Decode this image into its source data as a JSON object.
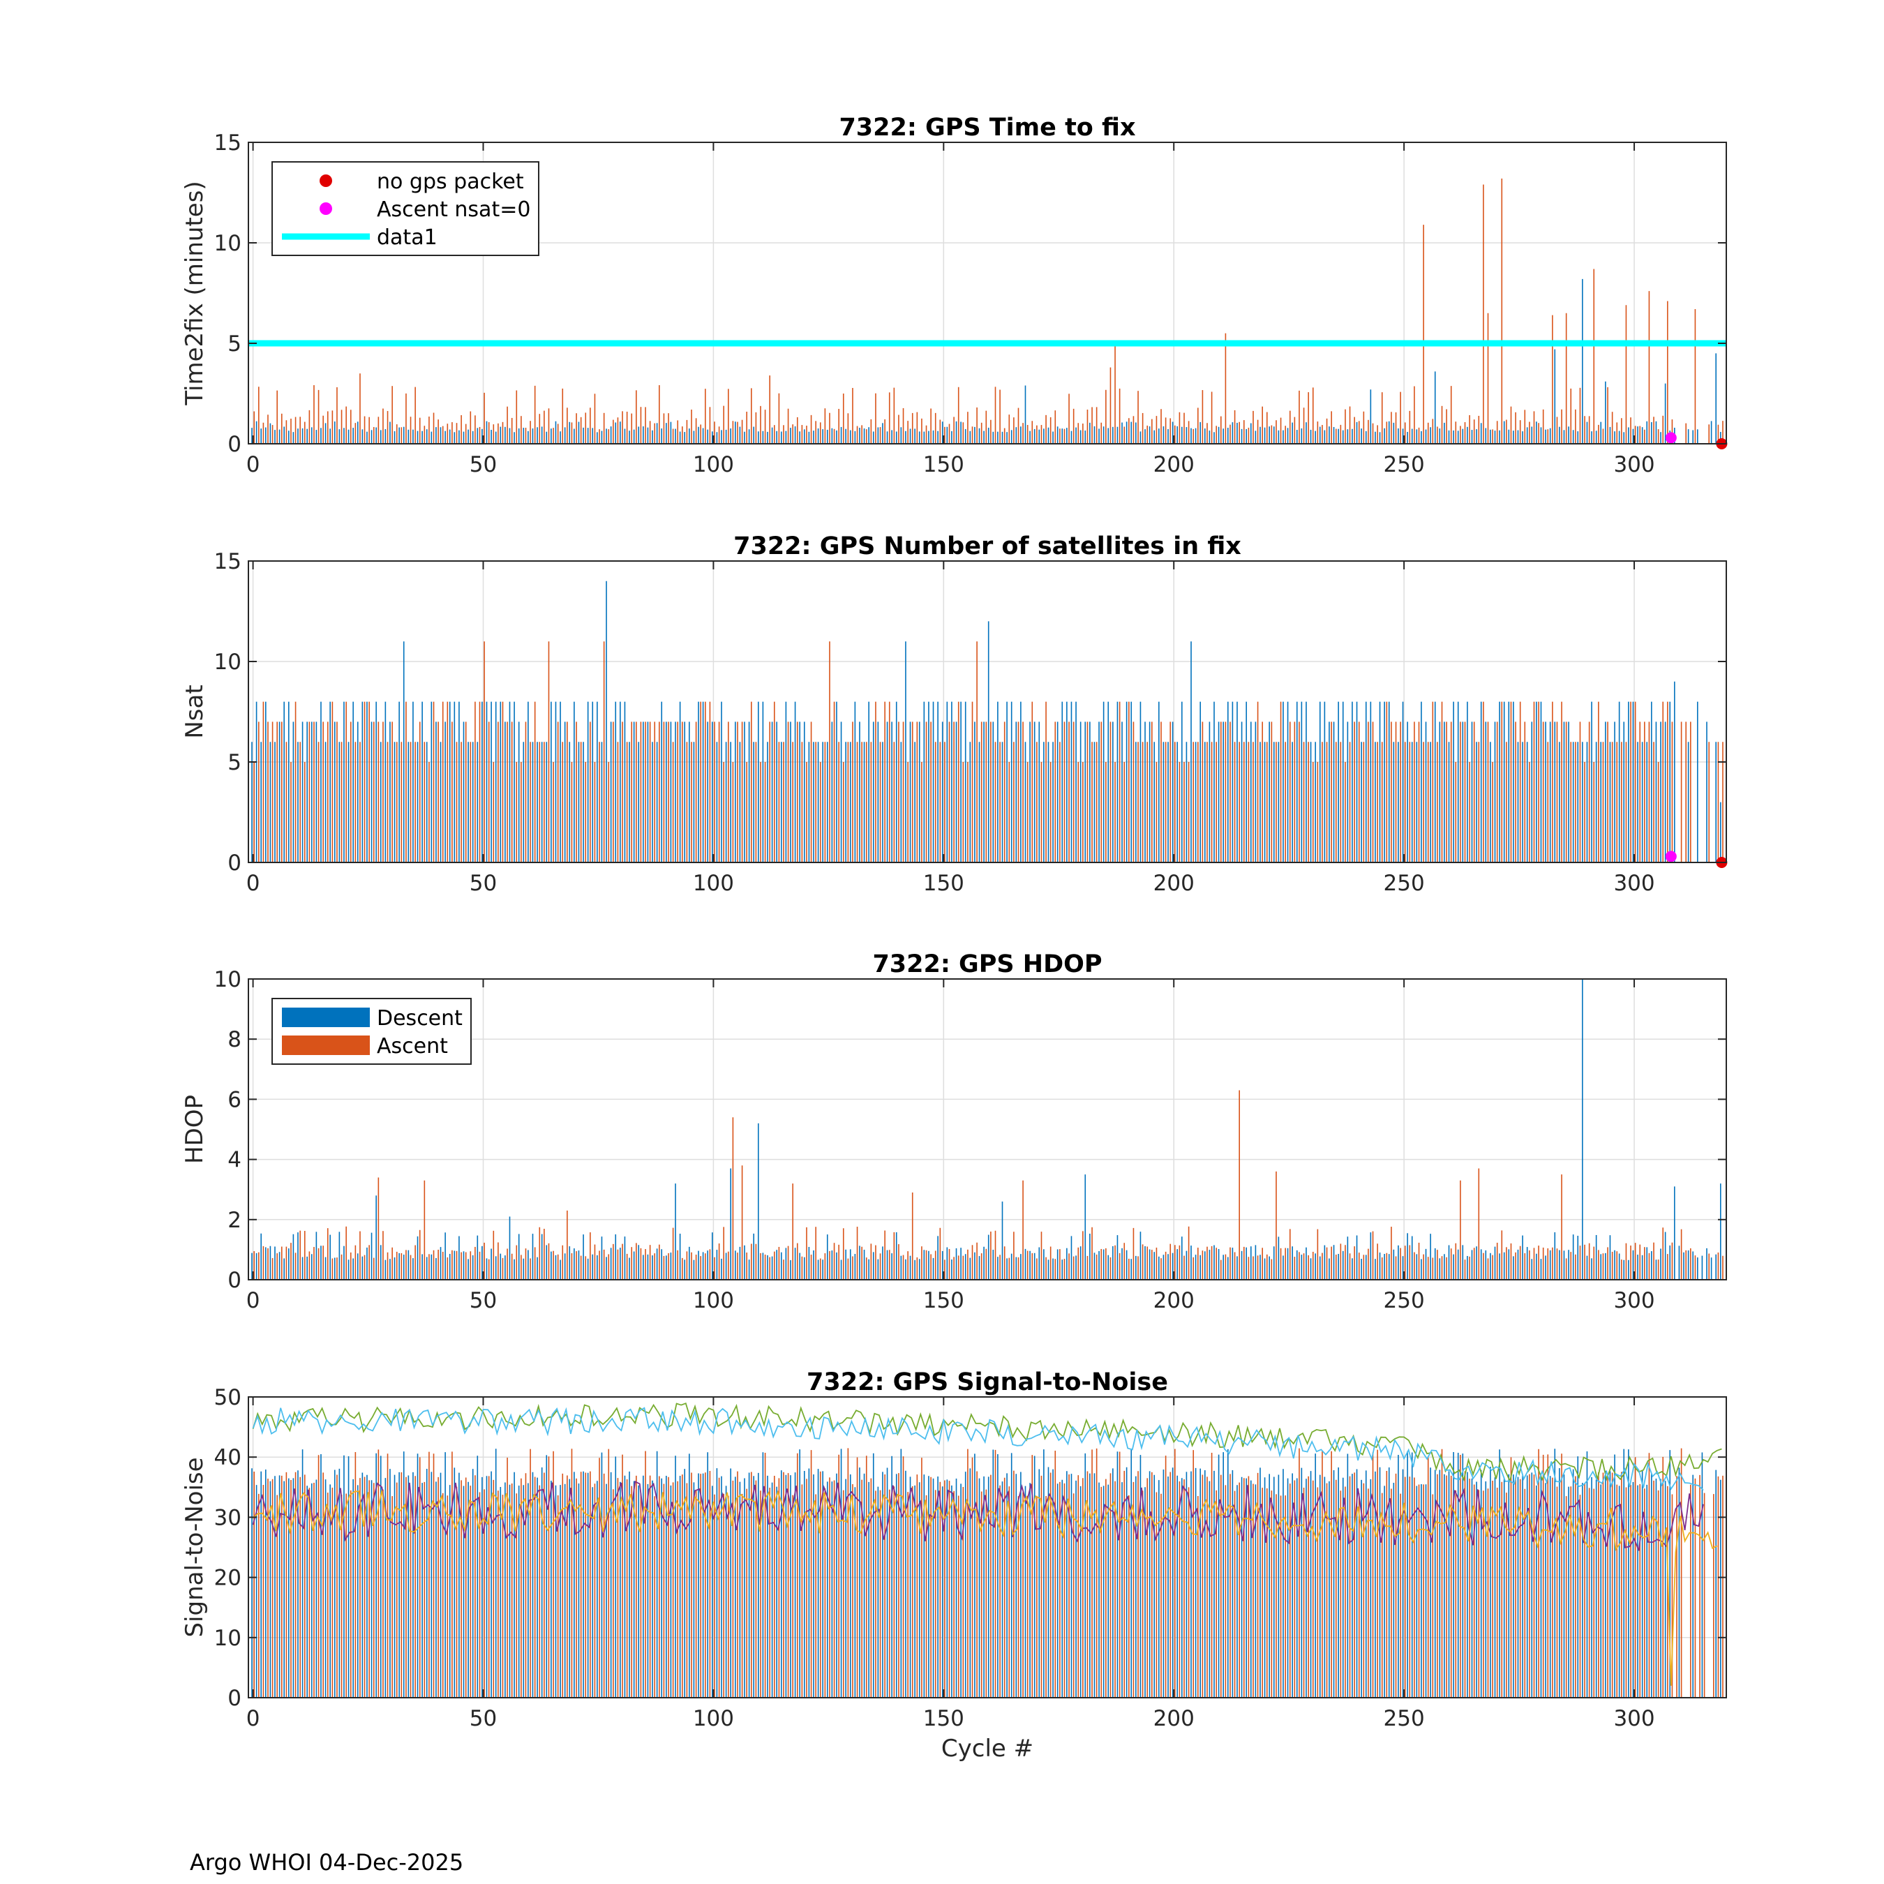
{
  "footer": "Argo WHOI 04-Dec-2025",
  "colors": {
    "descent": "#0072BD",
    "ascent": "#D95319",
    "cyan": "#00FFFF",
    "red": "#E00000",
    "magenta": "#FF00FF",
    "snr": [
      "#0072BD",
      "#D95319",
      "#EDB120",
      "#7E2F8E",
      "#77AC30",
      "#4DBEEE"
    ]
  },
  "chart_data": [
    {
      "type": "bar",
      "title": "7322: GPS Time to fix",
      "xlabel": "",
      "ylabel": "Time2fix (minutes)",
      "xlim": [
        -1,
        320
      ],
      "ylim": [
        0,
        15
      ],
      "xticks": [
        0,
        50,
        100,
        150,
        200,
        250,
        300
      ],
      "yticks": [
        0,
        5,
        10,
        15
      ],
      "grid": true,
      "legend_position": "top-left",
      "legend": [
        {
          "label": "no gps packet",
          "kind": "marker",
          "color": "#E00000"
        },
        {
          "label": "Ascent nsat=0",
          "kind": "marker",
          "color": "#FF00FF"
        },
        {
          "label": "data1",
          "kind": "line",
          "color": "#00FFFF"
        }
      ],
      "series": [
        {
          "name": "Descent",
          "color": "#0072BD",
          "base": 0.75,
          "spread": 0.35,
          "spikes": [
            [
              168,
              2.9
            ],
            [
              243,
              2.7
            ],
            [
              257,
              3.6
            ],
            [
              283,
              4.7
            ],
            [
              294,
              3.1
            ],
            [
              289,
              8.2
            ],
            [
              307,
              3.0
            ],
            [
              318,
              4.5
            ]
          ]
        },
        {
          "name": "Ascent",
          "color": "#D95319",
          "base": 1.4,
          "spread": 1.4,
          "spikes": [
            [
              23,
              3.5
            ],
            [
              112,
              3.4
            ],
            [
              186,
              3.8
            ],
            [
              187,
              5.0
            ],
            [
              211,
              5.5
            ],
            [
              254,
              10.9
            ],
            [
              267,
              12.9
            ],
            [
              268,
              6.5
            ],
            [
              271,
              13.2
            ],
            [
              282,
              6.4
            ],
            [
              285,
              6.5
            ],
            [
              291,
              8.7
            ],
            [
              298,
              6.9
            ],
            [
              303,
              7.6
            ],
            [
              307,
              7.1
            ],
            [
              313,
              6.7
            ]
          ]
        }
      ],
      "reference_line": {
        "name": "data1",
        "value": 5
      },
      "markers": [
        {
          "name": "no gps packet",
          "x": 319,
          "y": 0
        },
        {
          "name": "Ascent nsat=0",
          "x": 308,
          "y": 0.3
        }
      ]
    },
    {
      "type": "bar",
      "title": "7322: GPS Number of satellites in fix",
      "xlabel": "",
      "ylabel": "Nsat",
      "xlim": [
        -1,
        320
      ],
      "ylim": [
        0,
        15
      ],
      "xticks": [
        0,
        50,
        100,
        150,
        200,
        250,
        300
      ],
      "yticks": [
        0,
        5,
        10,
        15
      ],
      "grid": true,
      "series": [
        {
          "name": "Descent",
          "color": "#0072BD",
          "base": 7,
          "spread": 3,
          "spikes": [
            [
              77,
              14
            ],
            [
              160,
              12
            ],
            [
              142,
              11
            ],
            [
              204,
              11
            ],
            [
              33,
              11
            ],
            [
              309,
              9
            ],
            [
              319,
              3
            ]
          ]
        },
        {
          "name": "Ascent",
          "color": "#D95319",
          "base": 6.5,
          "spread": 3,
          "spikes": [
            [
              50,
              11
            ],
            [
              64,
              11
            ],
            [
              76,
              11
            ],
            [
              157,
              11
            ],
            [
              125,
              11
            ],
            [
              308,
              7
            ]
          ]
        }
      ],
      "markers": [
        {
          "name": "no gps packet",
          "x": 319,
          "y": 0
        },
        {
          "name": "Ascent nsat=0",
          "x": 308,
          "y": 0.3
        }
      ]
    },
    {
      "type": "bar",
      "title": "7322: GPS HDOP",
      "xlabel": "",
      "ylabel": "HDOP",
      "xlim": [
        -1,
        320
      ],
      "ylim": [
        0,
        10
      ],
      "xticks": [
        0,
        50,
        100,
        150,
        200,
        250,
        300
      ],
      "yticks": [
        0,
        2,
        4,
        6,
        8,
        10
      ],
      "grid": true,
      "legend_position": "top-left",
      "legend": [
        {
          "label": "Descent",
          "kind": "patch",
          "color": "#0072BD"
        },
        {
          "label": "Ascent",
          "kind": "patch",
          "color": "#D95319"
        }
      ],
      "series": [
        {
          "name": "Descent",
          "color": "#0072BD",
          "base": 0.95,
          "spread": 0.6,
          "spikes": [
            [
              27,
              2.8
            ],
            [
              56,
              2.1
            ],
            [
              92,
              3.2
            ],
            [
              110,
              5.2
            ],
            [
              104,
              3.7
            ],
            [
              181,
              3.5
            ],
            [
              289,
              10
            ],
            [
              309,
              3.1
            ],
            [
              319,
              3.2
            ],
            [
              163,
              2.6
            ]
          ]
        },
        {
          "name": "Ascent",
          "color": "#D95319",
          "base": 1.0,
          "spread": 0.7,
          "spikes": [
            [
              27,
              3.4
            ],
            [
              37,
              3.3
            ],
            [
              68,
              2.3
            ],
            [
              104,
              5.4
            ],
            [
              106,
              3.8
            ],
            [
              117,
              3.2
            ],
            [
              143,
              2.9
            ],
            [
              167,
              3.3
            ],
            [
              214,
              6.3
            ],
            [
              222,
              3.6
            ],
            [
              262,
              3.3
            ],
            [
              266,
              3.7
            ],
            [
              284,
              3.5
            ]
          ]
        }
      ]
    },
    {
      "type": "line",
      "title": "7322: GPS Signal-to-Noise",
      "xlabel": "Cycle #",
      "ylabel": "Signal-to-Noise",
      "xlim": [
        -1,
        320
      ],
      "ylim": [
        0,
        50
      ],
      "xticks": [
        0,
        50,
        100,
        150,
        200,
        250,
        300
      ],
      "yticks": [
        0,
        10,
        20,
        30,
        40,
        50
      ],
      "grid": true,
      "bars": [
        {
          "name": "Descent",
          "color": "#0072BD",
          "base": 37,
          "spread": 4
        },
        {
          "name": "Ascent",
          "color": "#D95319",
          "base": 36,
          "spread": 5
        }
      ],
      "series": [
        {
          "name": "snr-green",
          "color": "#77AC30",
          "segments": [
            [
              0,
              46
            ],
            [
              100,
              47
            ],
            [
              160,
              45
            ],
            [
              200,
              44
            ],
            [
              250,
              42
            ],
            [
              260,
              38
            ],
            [
              300,
              38
            ],
            [
              319,
              40
            ]
          ],
          "noise": 2.0
        },
        {
          "name": "snr-lightblue",
          "color": "#4DBEEE",
          "segments": [
            [
              0,
              46
            ],
            [
              100,
              46
            ],
            [
              160,
              44
            ],
            [
              200,
              43
            ],
            [
              250,
              41
            ],
            [
              260,
              38
            ],
            [
              300,
              37
            ],
            [
              315,
              36
            ]
          ],
          "noise": 2.2
        },
        {
          "name": "snr-purple",
          "color": "#7E2F8E",
          "segments": [
            [
              0,
              31
            ],
            [
              100,
              31
            ],
            [
              200,
              31
            ],
            [
              250,
              30
            ],
            [
              300,
              29
            ],
            [
              315,
              29
            ]
          ],
          "noise": 5.0
        },
        {
          "name": "snr-yellow",
          "color": "#EDB120",
          "segments": [
            [
              0,
              31
            ],
            [
              100,
              31
            ],
            [
              200,
              30
            ],
            [
              250,
              29
            ],
            [
              300,
              28
            ],
            [
              318,
              26
            ]
          ],
          "noise": 3.5
        }
      ]
    }
  ]
}
